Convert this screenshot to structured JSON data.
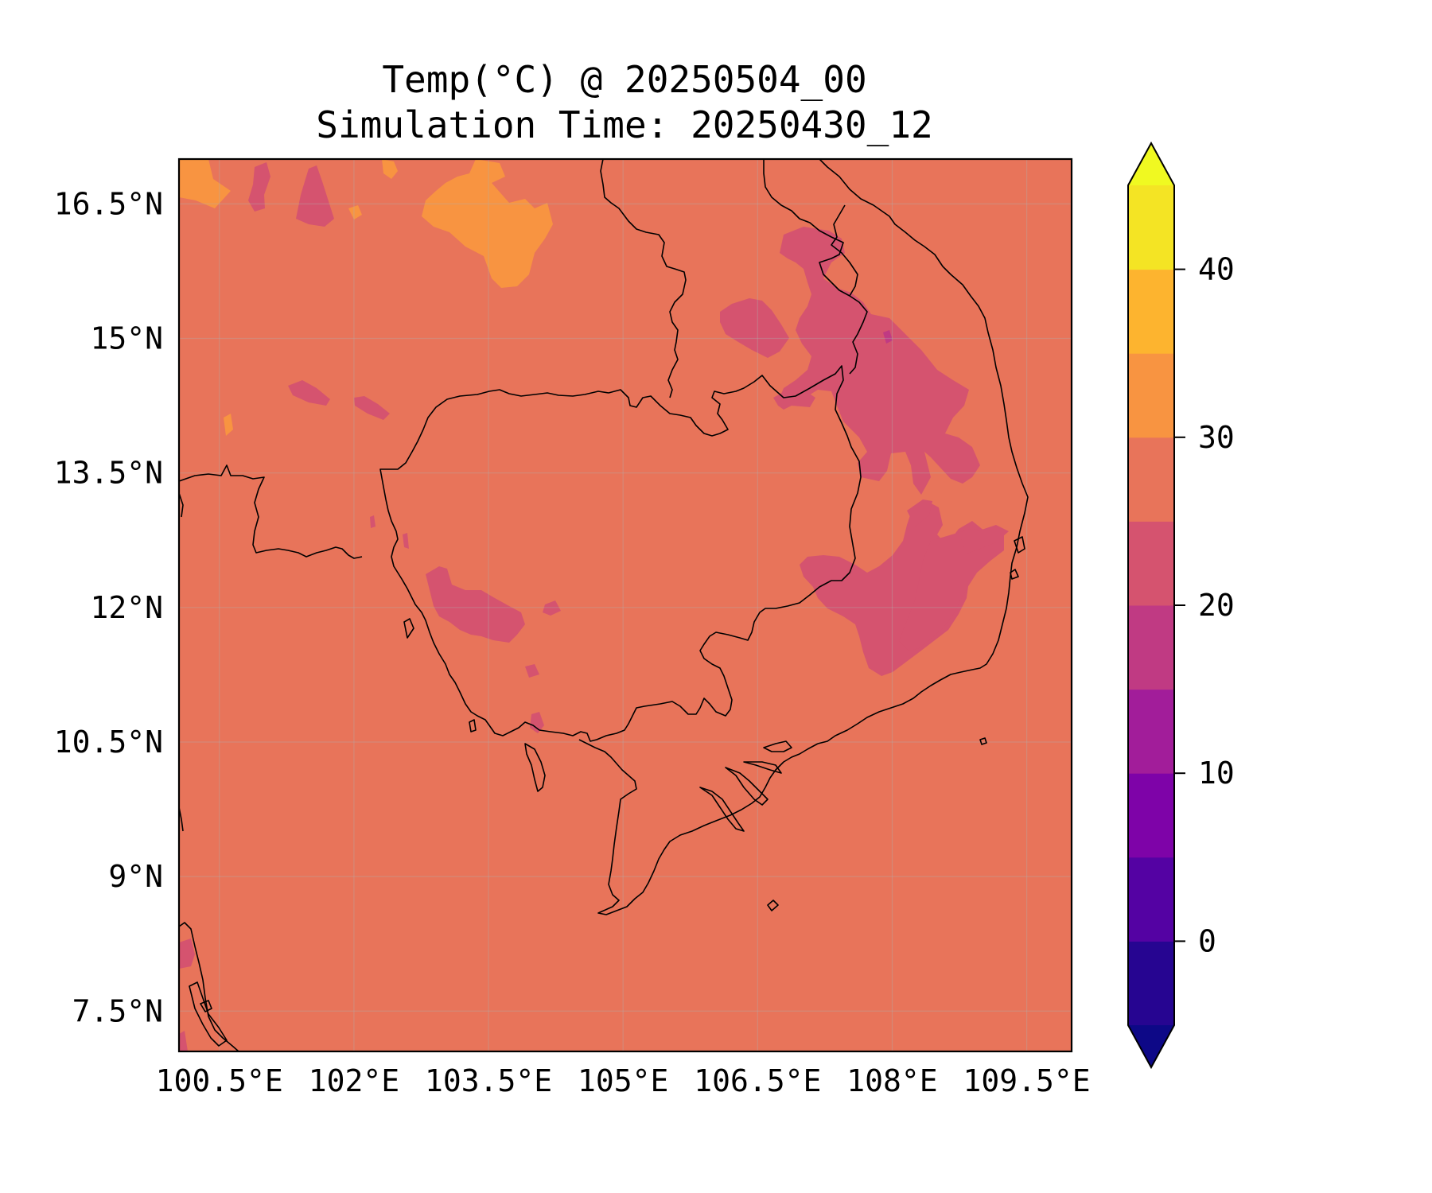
{
  "figure": {
    "title_line1": "Temp(°C) @ 20250504_00",
    "title_line2": "Simulation Time: 20250430_12"
  },
  "map": {
    "lon_range": [
      100.05,
      110.0
    ],
    "lat_range": [
      7.05,
      17.0
    ],
    "lon_ticks": [
      {
        "value": 100.5,
        "label": "100.5°E"
      },
      {
        "value": 102.0,
        "label": "102°E"
      },
      {
        "value": 103.5,
        "label": "103.5°E"
      },
      {
        "value": 105.0,
        "label": "105°E"
      },
      {
        "value": 106.5,
        "label": "106.5°E"
      },
      {
        "value": 108.0,
        "label": "108°E"
      },
      {
        "value": 109.5,
        "label": "109.5°E"
      }
    ],
    "lat_ticks": [
      {
        "value": 16.5,
        "label": "16.5°N"
      },
      {
        "value": 15.0,
        "label": "15°N"
      },
      {
        "value": 13.5,
        "label": "13.5°N"
      },
      {
        "value": 12.0,
        "label": "12°N"
      },
      {
        "value": 10.5,
        "label": "10.5°N"
      },
      {
        "value": 9.0,
        "label": "9°N"
      },
      {
        "value": 7.5,
        "label": "7.5°N"
      }
    ],
    "gridlines": true,
    "background_color": "#e8745a"
  },
  "chart_data": {
    "type": "heatmap",
    "variable": "Temp(°C)",
    "colormap": "plasma",
    "extend": "both",
    "levels": [
      -5,
      0,
      5,
      10,
      15,
      20,
      25,
      30,
      35,
      40,
      45
    ],
    "level_colors": [
      "#260591",
      "#5402a3",
      "#7e03a8",
      "#a21d9a",
      "#c03a83",
      "#d5536f",
      "#e8745a",
      "#f89441",
      "#fdb42f",
      "#f4e424"
    ],
    "under_color": "#0d0887",
    "over_color": "#f0f921",
    "colorbar_ticks": [
      {
        "value": 0,
        "label": "0"
      },
      {
        "value": 10,
        "label": "10"
      },
      {
        "value": 20,
        "label": "20"
      },
      {
        "value": 30,
        "label": "30"
      },
      {
        "value": 40,
        "label": "40"
      }
    ],
    "dominant_range": [
      25,
      30
    ],
    "cool_regions_range": [
      20,
      25
    ],
    "warm_regions_range": [
      30,
      35
    ]
  }
}
